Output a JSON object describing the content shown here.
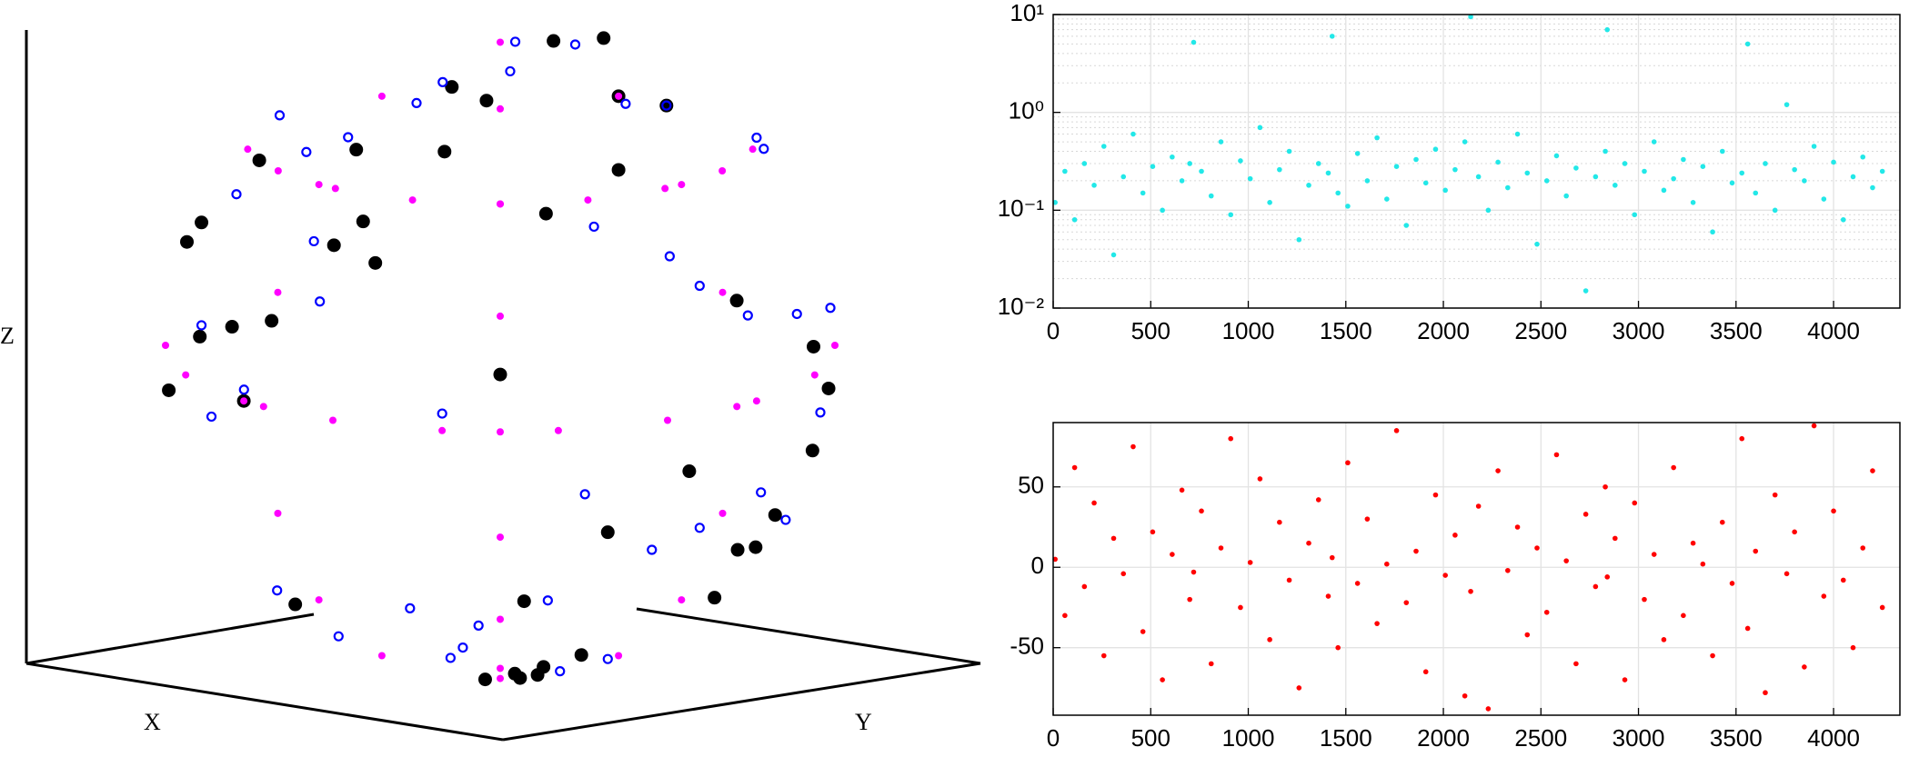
{
  "chart_data": [
    {
      "type": "scatter3d",
      "xlabel": "X",
      "ylabel": "Y",
      "zlabel": "Z",
      "series": [
        {
          "color": "#000000",
          "marker": "filled",
          "lat": [
            10,
            -20,
            35,
            60,
            -45,
            -70,
            5,
            25,
            -10,
            50,
            -30,
            72,
            15,
            -55,
            40,
            -5,
            65,
            -80,
            20,
            -35,
            55,
            0,
            -60,
            30,
            -15,
            45,
            -75,
            8,
            78,
            -40,
            28,
            -25,
            62,
            -50,
            12,
            38,
            -8,
            -85,
            48,
            18
          ],
          "lon": [
            0,
            20,
            -30,
            45,
            -60,
            10,
            70,
            -80,
            35,
            -15,
            55,
            90,
            -45,
            25,
            -70,
            80,
            -20,
            40,
            -85,
            5,
            60,
            -50,
            15,
            -35,
            75,
            30,
            -10,
            -65,
            50,
            95,
            -25,
            65,
            -5,
            85,
            -55,
            10,
            -90,
            30,
            -40,
            48
          ]
        },
        {
          "color": "#0000ff",
          "marker": "hollow",
          "lat": [
            -12,
            30,
            55,
            -38,
            8,
            70,
            -60,
            22,
            45,
            -25,
            3,
            -70,
            60,
            35,
            -48,
            15,
            -5,
            80,
            -30,
            50,
            12,
            -42,
            28,
            66,
            -18,
            40,
            -55,
            2,
            58,
            -8,
            33,
            -65,
            20,
            75,
            -35,
            48,
            -22,
            10,
            -50,
            38
          ],
          "lon": [
            15,
            -40,
            60,
            -20,
            85,
            5,
            -75,
            40,
            -55,
            30,
            -10,
            70,
            -30,
            20,
            -85,
            50,
            -60,
            15,
            80,
            -45,
            65,
            -5,
            35,
            -25,
            55,
            90,
            -15,
            -50,
            45,
            75,
            -70,
            25,
            -35,
            60,
            10,
            -80,
            40,
            -65,
            -10,
            88
          ]
        },
        {
          "color": "#ff00ff",
          "marker": "filled",
          "lat": [
            0,
            0,
            0,
            0,
            0,
            0,
            0,
            0,
            0,
            0,
            40,
            40,
            40,
            40,
            40,
            40,
            40,
            40,
            40,
            -80,
            -60,
            -40,
            -20,
            0,
            20,
            40,
            60,
            80,
            -60,
            -40,
            -20,
            0,
            20,
            40,
            60,
            -60,
            -40,
            -20,
            0,
            20,
            40,
            60
          ],
          "lon": [
            -90,
            -70,
            -50,
            -30,
            -10,
            10,
            30,
            50,
            70,
            90,
            -80,
            -60,
            -40,
            -20,
            0,
            20,
            40,
            60,
            80,
            0,
            0,
            0,
            0,
            0,
            0,
            0,
            0,
            0,
            45,
            45,
            45,
            45,
            45,
            45,
            45,
            -45,
            -45,
            -45,
            -45,
            -45,
            -45,
            -45
          ]
        }
      ]
    },
    {
      "type": "scatter",
      "color": "#22e8e8",
      "yscale": "log",
      "grid": true,
      "minor_grid": true,
      "xlim": [
        0,
        4340
      ],
      "xticks": [
        0,
        500,
        1000,
        1500,
        2000,
        2500,
        3000,
        3500,
        4000
      ],
      "ylim": [
        0.01,
        10
      ],
      "yticks": [
        {
          "value": 0.01,
          "label": "10⁻²"
        },
        {
          "value": 0.1,
          "label": "10⁻¹"
        },
        {
          "value": 1,
          "label": "10⁰"
        },
        {
          "value": 10,
          "label": "10¹"
        }
      ],
      "x": [
        10,
        60,
        110,
        160,
        210,
        260,
        310,
        360,
        410,
        460,
        510,
        560,
        610,
        660,
        700,
        720,
        760,
        810,
        860,
        910,
        960,
        1010,
        1060,
        1110,
        1160,
        1210,
        1260,
        1310,
        1360,
        1410,
        1430,
        1460,
        1510,
        1560,
        1610,
        1660,
        1710,
        1760,
        1810,
        1860,
        1910,
        1960,
        2010,
        2060,
        2110,
        2140,
        2180,
        2230,
        2280,
        2330,
        2380,
        2430,
        2480,
        2530,
        2580,
        2630,
        2680,
        2730,
        2780,
        2830,
        2840,
        2880,
        2930,
        2980,
        3030,
        3080,
        3130,
        3180,
        3230,
        3280,
        3330,
        3380,
        3430,
        3480,
        3530,
        3560,
        3600,
        3650,
        3700,
        3760,
        3800,
        3850,
        3900,
        3950,
        4000,
        4050,
        4100,
        4150,
        4200,
        4250
      ],
      "values": [
        0.12,
        0.25,
        0.08,
        0.3,
        0.18,
        0.45,
        0.035,
        0.22,
        0.6,
        0.15,
        0.28,
        0.1,
        0.35,
        0.2,
        0.3,
        5.2,
        0.25,
        0.14,
        0.5,
        0.09,
        0.32,
        0.21,
        0.7,
        0.12,
        0.26,
        0.4,
        0.05,
        0.18,
        0.3,
        0.24,
        6,
        0.15,
        0.11,
        0.38,
        0.2,
        0.55,
        0.13,
        0.28,
        0.07,
        0.33,
        0.19,
        0.42,
        0.16,
        0.26,
        0.5,
        9.5,
        0.22,
        0.1,
        0.31,
        0.17,
        0.6,
        0.24,
        0.045,
        0.2,
        0.36,
        0.14,
        0.27,
        0.015,
        0.22,
        0.4,
        7,
        0.18,
        0.3,
        0.09,
        0.25,
        0.5,
        0.16,
        0.21,
        0.33,
        0.12,
        0.28,
        0.06,
        0.4,
        0.19,
        0.24,
        5,
        0.15,
        0.3,
        0.1,
        1.2,
        0.26,
        0.2,
        0.45,
        0.13,
        0.31,
        0.08,
        0.22,
        0.35,
        0.17,
        0.25
      ]
    },
    {
      "type": "scatter",
      "color": "#ff0000",
      "grid": true,
      "xlim": [
        0,
        4340
      ],
      "xticks": [
        0,
        500,
        1000,
        1500,
        2000,
        2500,
        3000,
        3500,
        4000
      ],
      "ylim": [
        -92,
        90
      ],
      "yticks": [
        -50,
        0,
        50
      ],
      "x": [
        10,
        60,
        110,
        160,
        210,
        260,
        310,
        360,
        410,
        460,
        510,
        560,
        610,
        660,
        700,
        720,
        760,
        810,
        860,
        910,
        960,
        1010,
        1060,
        1110,
        1160,
        1210,
        1260,
        1310,
        1360,
        1410,
        1430,
        1460,
        1510,
        1560,
        1610,
        1660,
        1710,
        1760,
        1810,
        1860,
        1910,
        1960,
        2010,
        2060,
        2110,
        2140,
        2180,
        2230,
        2280,
        2330,
        2380,
        2430,
        2480,
        2530,
        2580,
        2630,
        2680,
        2730,
        2780,
        2830,
        2840,
        2880,
        2930,
        2980,
        3030,
        3080,
        3130,
        3180,
        3230,
        3280,
        3330,
        3380,
        3430,
        3480,
        3530,
        3560,
        3600,
        3650,
        3700,
        3760,
        3800,
        3850,
        3900,
        3950,
        4000,
        4050,
        4100,
        4150,
        4200,
        4250
      ],
      "values": [
        5,
        -30,
        62,
        -12,
        40,
        -55,
        18,
        -4,
        75,
        -40,
        22,
        -70,
        8,
        48,
        -20,
        -3,
        35,
        -60,
        12,
        80,
        -25,
        3,
        55,
        -45,
        28,
        -8,
        -75,
        15,
        42,
        -18,
        6,
        -50,
        65,
        -10,
        30,
        -35,
        2,
        85,
        -22,
        10,
        -65,
        45,
        -5,
        20,
        -80,
        -15,
        38,
        -88,
        60,
        -2,
        25,
        -42,
        12,
        -28,
        70,
        4,
        -60,
        33,
        -12,
        50,
        -6,
        18,
        -70,
        40,
        -20,
        8,
        -45,
        62,
        -30,
        15,
        2,
        -55,
        28,
        -10,
        80,
        -38,
        10,
        -78,
        45,
        -4,
        22,
        -62,
        88,
        -18,
        35,
        -8,
        -50,
        12,
        60,
        -25
      ]
    }
  ]
}
